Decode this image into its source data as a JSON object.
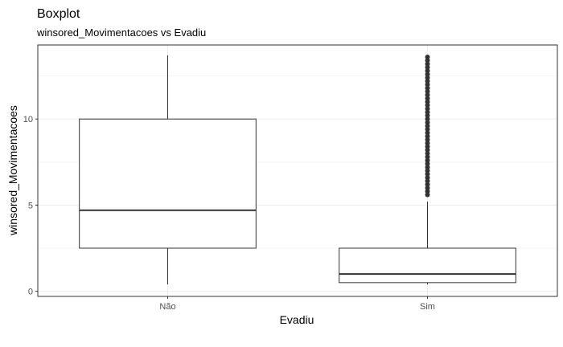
{
  "chart_data": {
    "type": "boxplot",
    "title": "Boxplot",
    "subtitle": "winsored_Movimentacoes vs Evadiu",
    "xlabel": "Evadiu",
    "ylabel": "winsored_Movimentacoes",
    "categories": [
      "Não",
      "Sim"
    ],
    "ylim": [
      -0.3,
      14.3
    ],
    "yticks": [
      0,
      5,
      10
    ],
    "grid": true,
    "boxes": [
      {
        "category": "Não",
        "whisker_low": 0.4,
        "q1": 2.5,
        "median": 4.7,
        "q3": 10.0,
        "whisker_high": 13.7,
        "outliers": []
      },
      {
        "category": "Sim",
        "whisker_low": 0.4,
        "q1": 0.5,
        "median": 1.0,
        "q3": 2.5,
        "whisker_high": 5.2,
        "outliers": [
          5.6,
          5.8,
          6.0,
          6.2,
          6.4,
          6.6,
          6.8,
          7.0,
          7.2,
          7.4,
          7.6,
          7.8,
          8.0,
          8.2,
          8.4,
          8.6,
          8.8,
          9.0,
          9.2,
          9.4,
          9.6,
          9.8,
          10.0,
          10.2,
          10.4,
          10.6,
          10.8,
          11.0,
          11.2,
          11.4,
          11.6,
          11.8,
          12.0,
          12.2,
          12.4,
          12.6,
          12.8,
          13.0,
          13.2,
          13.4,
          13.6
        ]
      }
    ],
    "colors": {
      "box_fill": "#ffffff",
      "line": "#333333",
      "grid": "#ebebeb",
      "panel_border": "#333333",
      "outlier": "#333333"
    }
  }
}
